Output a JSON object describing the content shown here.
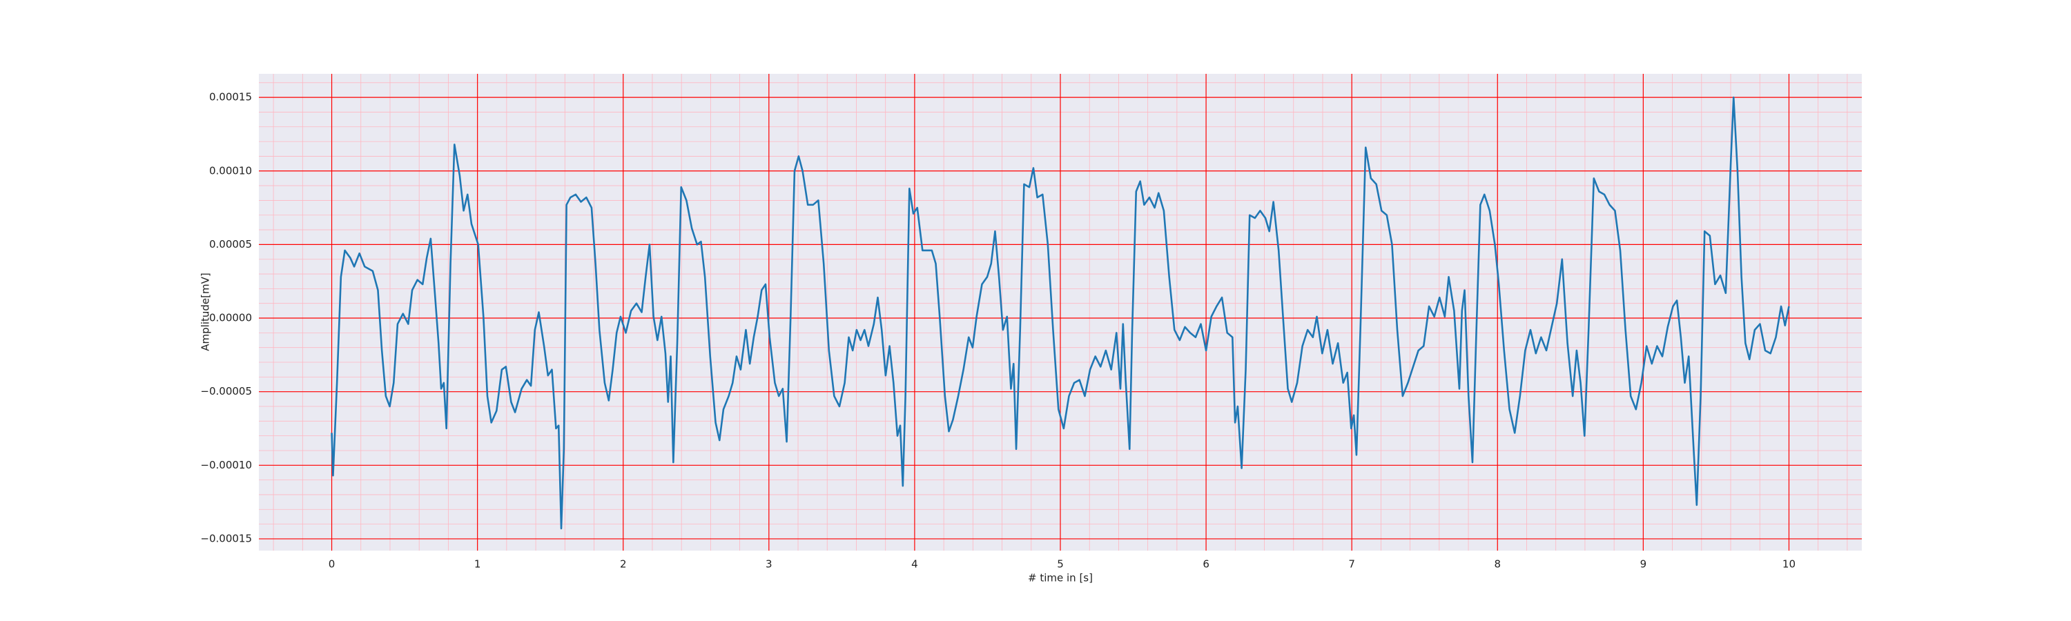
{
  "chart_data": {
    "type": "line",
    "xlabel": "# time in [s]",
    "ylabel": "Amplitude[mV]",
    "x": [
      0,
      0.009,
      0.036,
      0.063,
      0.09,
      0.127,
      0.154,
      0.19,
      0.226,
      0.281,
      0.317,
      0.344,
      0.371,
      0.398,
      0.425,
      0.452,
      0.489,
      0.525,
      0.552,
      0.588,
      0.624,
      0.652,
      0.679,
      0.706,
      0.733,
      0.751,
      0.769,
      0.787,
      0.815,
      0.842,
      0.878,
      0.905,
      0.932,
      0.959,
      1.005,
      1.041,
      1.068,
      1.095,
      1.131,
      1.167,
      1.195,
      1.231,
      1.258,
      1.303,
      1.339,
      1.367,
      1.394,
      1.421,
      1.457,
      1.484,
      1.511,
      1.539,
      1.557,
      1.575,
      1.593,
      1.611,
      1.638,
      1.674,
      1.71,
      1.747,
      1.783,
      1.81,
      1.837,
      1.873,
      1.901,
      1.928,
      1.955,
      1.982,
      2.018,
      2.054,
      2.091,
      2.127,
      2.154,
      2.181,
      2.208,
      2.235,
      2.263,
      2.29,
      2.308,
      2.326,
      2.344,
      2.371,
      2.398,
      2.434,
      2.471,
      2.507,
      2.534,
      2.561,
      2.597,
      2.634,
      2.661,
      2.688,
      2.724,
      2.751,
      2.778,
      2.806,
      2.842,
      2.869,
      2.896,
      2.923,
      2.95,
      2.977,
      3.005,
      3.041,
      3.068,
      3.095,
      3.122,
      3.149,
      3.176,
      3.204,
      3.231,
      3.267,
      3.303,
      3.339,
      3.376,
      3.412,
      3.448,
      3.484,
      3.52,
      3.548,
      3.575,
      3.602,
      3.629,
      3.656,
      3.683,
      3.72,
      3.747,
      3.774,
      3.801,
      3.828,
      3.855,
      3.882,
      3.901,
      3.919,
      3.937,
      3.964,
      3.991,
      4.018,
      4.054,
      4.091,
      4.118,
      4.145,
      4.172,
      4.208,
      4.235,
      4.263,
      4.299,
      4.335,
      4.371,
      4.398,
      4.425,
      4.462,
      4.498,
      4.525,
      4.552,
      4.579,
      4.606,
      4.634,
      4.661,
      4.679,
      4.697,
      4.724,
      4.751,
      4.787,
      4.815,
      4.842,
      4.878,
      4.914,
      4.95,
      4.987,
      5.023,
      5.059,
      5.095,
      5.131,
      5.168,
      5.204,
      5.24,
      5.276,
      5.312,
      5.349,
      5.385,
      5.412,
      5.43,
      5.448,
      5.475,
      5.493,
      5.52,
      5.548,
      5.575,
      5.611,
      5.647,
      5.674,
      5.71,
      5.747,
      5.783,
      5.819,
      5.855,
      5.891,
      5.928,
      5.964,
      6,
      6.036,
      6.072,
      6.109,
      6.145,
      6.181,
      6.199,
      6.217,
      6.244,
      6.272,
      6.299,
      6.335,
      6.371,
      6.407,
      6.434,
      6.462,
      6.498,
      6.534,
      6.561,
      6.588,
      6.625,
      6.661,
      6.697,
      6.733,
      6.76,
      6.797,
      6.833,
      6.869,
      6.905,
      6.941,
      6.969,
      6.996,
      7.014,
      7.032,
      7.059,
      7.095,
      7.131,
      7.168,
      7.204,
      7.24,
      7.276,
      7.312,
      7.349,
      7.385,
      7.421,
      7.457,
      7.493,
      7.53,
      7.566,
      7.602,
      7.638,
      7.665,
      7.702,
      7.738,
      7.756,
      7.774,
      7.801,
      7.828,
      7.855,
      7.882,
      7.91,
      7.946,
      7.982,
      8.009,
      8.045,
      8.082,
      8.118,
      8.154,
      8.19,
      8.226,
      8.263,
      8.299,
      8.335,
      8.371,
      8.407,
      8.443,
      8.48,
      8.516,
      8.543,
      8.57,
      8.597,
      8.625,
      8.661,
      8.697,
      8.733,
      8.769,
      8.806,
      8.842,
      8.878,
      8.914,
      8.95,
      8.987,
      9.023,
      9.059,
      9.095,
      9.131,
      9.168,
      9.204,
      9.231,
      9.258,
      9.285,
      9.312,
      9.348,
      9.367,
      9.394,
      9.421,
      9.457,
      9.493,
      9.529,
      9.566,
      9.602,
      9.62,
      9.647,
      9.674,
      9.701,
      9.729,
      9.765,
      9.801,
      9.837,
      9.873,
      9.91,
      9.946,
      9.973,
      10
    ],
    "series": [
      {
        "color": "#1f77b4",
        "values": [
          -7.8e-05,
          -0.000107,
          -4.4e-05,
          2.8e-05,
          4.6e-05,
          4.1e-05,
          3.5e-05,
          4.4e-05,
          3.5e-05,
          3.2e-05,
          1.9e-05,
          -2.2e-05,
          -5.3e-05,
          -6e-05,
          -4.4e-05,
          -4e-06,
          3e-06,
          -4e-06,
          1.9e-05,
          2.6e-05,
          2.3e-05,
          4.1e-05,
          5.4e-05,
          1.9e-05,
          -1.7e-05,
          -4.8e-05,
          -4.4e-05,
          -7.5e-05,
          3.7e-05,
          0.000118,
          9.7e-05,
          7.3e-05,
          8.4e-05,
          6.4e-05,
          5e-05,
          1e-06,
          -5.3e-05,
          -7.1e-05,
          -6.3e-05,
          -3.5e-05,
          -3.3e-05,
          -5.7e-05,
          -6.4e-05,
          -4.8e-05,
          -4.2e-05,
          -4.6e-05,
          -8e-06,
          4e-06,
          -1.9e-05,
          -3.9e-05,
          -3.5e-05,
          -7.5e-05,
          -7.3e-05,
          -0.000143,
          -8.9e-05,
          7.7e-05,
          8.2e-05,
          8.4e-05,
          7.9e-05,
          8.2e-05,
          7.5e-05,
          3.7e-05,
          -8e-06,
          -4.4e-05,
          -5.6e-05,
          -3.5e-05,
          -1e-05,
          1e-06,
          -1e-05,
          5e-06,
          1e-05,
          4e-06,
          2.8e-05,
          5e-05,
          1e-06,
          -1.5e-05,
          1e-06,
          -2.4e-05,
          -5.7e-05,
          -2.6e-05,
          -9.8e-05,
          -1.7e-05,
          8.9e-05,
          8e-05,
          6.1e-05,
          5e-05,
          5.2e-05,
          2.8e-05,
          -2.6e-05,
          -7.1e-05,
          -8.3e-05,
          -6.2e-05,
          -5.3e-05,
          -4.4e-05,
          -2.6e-05,
          -3.5e-05,
          -8e-06,
          -3.1e-05,
          -1.3e-05,
          1e-06,
          1.9e-05,
          2.3e-05,
          -1.3e-05,
          -4.4e-05,
          -5.3e-05,
          -4.8e-05,
          -8.4e-05,
          1e-06,
          0.0001,
          0.00011,
          0.0001,
          7.7e-05,
          7.7e-05,
          8e-05,
          3.7e-05,
          -2.2e-05,
          -5.3e-05,
          -6e-05,
          -4.4e-05,
          -1.3e-05,
          -2.2e-05,
          -8e-06,
          -1.5e-05,
          -8e-06,
          -1.9e-05,
          -4e-06,
          1.4e-05,
          -8e-06,
          -3.9e-05,
          -1.9e-05,
          -4.4e-05,
          -8e-05,
          -7.3e-05,
          -0.000114,
          -5.3e-05,
          8.8e-05,
          7.1e-05,
          7.5e-05,
          4.6e-05,
          4.6e-05,
          4.6e-05,
          3.7e-05,
          1e-06,
          -5.3e-05,
          -7.7e-05,
          -6.9e-05,
          -5.3e-05,
          -3.5e-05,
          -1.3e-05,
          -2e-05,
          1e-06,
          2.3e-05,
          2.8e-05,
          3.7e-05,
          5.9e-05,
          2.8e-05,
          -8e-06,
          1e-06,
          -4.8e-05,
          -3.1e-05,
          -8.9e-05,
          -8e-06,
          9.1e-05,
          8.9e-05,
          0.000102,
          8.2e-05,
          8.4e-05,
          5e-05,
          -8e-06,
          -6.2e-05,
          -7.5e-05,
          -5.3e-05,
          -4.4e-05,
          -4.2e-05,
          -5.3e-05,
          -3.5e-05,
          -2.6e-05,
          -3.3e-05,
          -2.2e-05,
          -3.5e-05,
          -1e-05,
          -4.8e-05,
          -4e-06,
          -4.2e-05,
          -8.9e-05,
          -8e-06,
          8.6e-05,
          9.3e-05,
          7.7e-05,
          8.2e-05,
          7.5e-05,
          8.5e-05,
          7.3e-05,
          2.8e-05,
          -8e-06,
          -1.5e-05,
          -6e-06,
          -1e-05,
          -1.3e-05,
          -4e-06,
          -2.2e-05,
          1e-06,
          8e-06,
          1.4e-05,
          -1e-05,
          -1.3e-05,
          -7.1e-05,
          -6e-05,
          -0.000102,
          -3.5e-05,
          7e-05,
          6.8e-05,
          7.3e-05,
          6.8e-05,
          5.9e-05,
          7.9e-05,
          4.6e-05,
          -8e-06,
          -4.8e-05,
          -5.7e-05,
          -4.4e-05,
          -1.9e-05,
          -8e-06,
          -1.3e-05,
          1e-06,
          -2.4e-05,
          -8e-06,
          -3.1e-05,
          -1.7e-05,
          -4.4e-05,
          -3.7e-05,
          -7.5e-05,
          -6.6e-05,
          -9.3e-05,
          -8e-06,
          0.000116,
          9.5e-05,
          9.1e-05,
          7.3e-05,
          7e-05,
          5e-05,
          -8e-06,
          -5.3e-05,
          -4.4e-05,
          -3.3e-05,
          -2.2e-05,
          -1.9e-05,
          8e-06,
          1e-06,
          1.4e-05,
          1e-06,
          2.8e-05,
          5e-06,
          -4.8e-05,
          5e-06,
          1.9e-05,
          -5.3e-05,
          -9.8e-05,
          -8e-06,
          7.7e-05,
          8.4e-05,
          7.3e-05,
          5e-05,
          2.3e-05,
          -2.2e-05,
          -6.2e-05,
          -7.8e-05,
          -5.3e-05,
          -2.2e-05,
          -8e-06,
          -2.4e-05,
          -1.3e-05,
          -2.2e-05,
          -6e-06,
          1e-05,
          4e-05,
          -1.7e-05,
          -5.3e-05,
          -2.2e-05,
          -4.4e-05,
          -8e-05,
          -8e-06,
          9.5e-05,
          8.6e-05,
          8.4e-05,
          7.7e-05,
          7.3e-05,
          4.6e-05,
          -8e-06,
          -5.3e-05,
          -6.2e-05,
          -4.4e-05,
          -1.9e-05,
          -3.1e-05,
          -1.9e-05,
          -2.6e-05,
          -6e-06,
          8e-06,
          1.2e-05,
          -1.3e-05,
          -4.4e-05,
          -2.6e-05,
          -9.3e-05,
          -0.000127,
          -5.3e-05,
          5.9e-05,
          5.6e-05,
          2.3e-05,
          2.9e-05,
          1.7e-05,
          0.000109,
          0.00015,
          0.0001,
          2.8e-05,
          -1.7e-05,
          -2.8e-05,
          -8e-06,
          -4e-06,
          -2.2e-05,
          -2.4e-05,
          -1.3e-05,
          8e-06,
          -5e-06,
          8e-06
        ]
      }
    ],
    "xlim": [
      -0.5,
      10.5
    ],
    "ylim": [
      -0.000158,
      0.000166
    ],
    "xticks": [
      0,
      1,
      2,
      3,
      4,
      5,
      6,
      7,
      8,
      9,
      10
    ],
    "yticks": [
      {
        "value": -0.00015,
        "label": "−0.00015"
      },
      {
        "value": -0.0001,
        "label": "−0.00010"
      },
      {
        "value": -5e-05,
        "label": "−0.00005"
      },
      {
        "value": 0,
        "label": "0.00000"
      },
      {
        "value": 5e-05,
        "label": "0.00005"
      },
      {
        "value": 0.0001,
        "label": "0.00010"
      },
      {
        "value": 0.00015,
        "label": "0.00015"
      }
    ],
    "grid": true,
    "grid_color": "#ff0000",
    "minor_grid": true,
    "minor_grid_color": "#ffb6c1",
    "background": "#eaeaf2"
  }
}
